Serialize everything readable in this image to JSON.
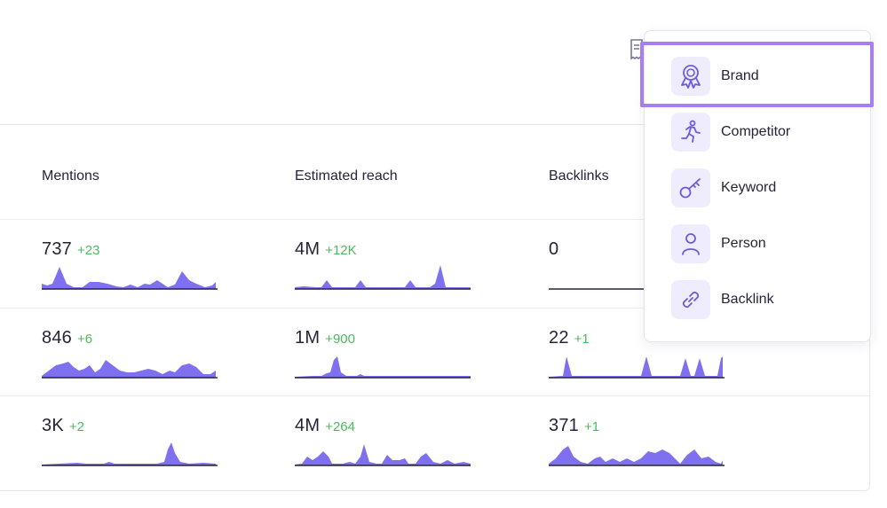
{
  "table": {
    "columns": [
      "Mentions",
      "Estimated reach",
      "Backlinks"
    ],
    "rows": [
      {
        "mentions": {
          "value": "737",
          "delta": "+23"
        },
        "reach": {
          "value": "4M",
          "delta": "+12K"
        },
        "backlinks": {
          "value": "0",
          "delta": ""
        }
      },
      {
        "mentions": {
          "value": "846",
          "delta": "+6"
        },
        "reach": {
          "value": "1M",
          "delta": "+900"
        },
        "backlinks": {
          "value": "22",
          "delta": "+1"
        }
      },
      {
        "mentions": {
          "value": "3K",
          "delta": "+2"
        },
        "reach": {
          "value": "4M",
          "delta": "+264"
        },
        "backlinks": {
          "value": "371",
          "delta": "+1"
        }
      }
    ]
  },
  "dropdown": {
    "items": [
      {
        "label": "Brand",
        "icon": "ribbon-badge-icon"
      },
      {
        "label": "Competitor",
        "icon": "running-person-icon"
      },
      {
        "label": "Keyword",
        "icon": "key-icon"
      },
      {
        "label": "Person",
        "icon": "person-icon"
      },
      {
        "label": "Backlink",
        "icon": "link-icon"
      }
    ],
    "highlighted": "Brand"
  },
  "colors": {
    "accent": "#7b6cf0",
    "sparkline_fill": "#7f70ef",
    "delta_positive": "#4cb85f",
    "icon_bg": "#efecfd",
    "highlight_border": "#a77ff2"
  }
}
